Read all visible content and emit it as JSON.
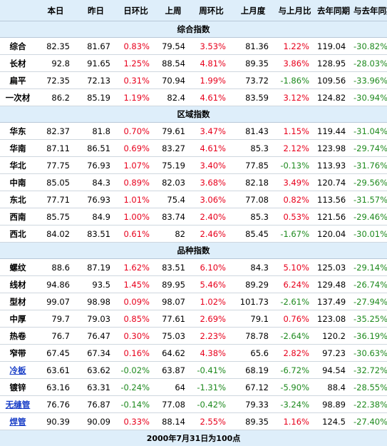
{
  "colors": {
    "up": "#e8001c",
    "down": "#1e8a1e",
    "link": "#1a3fc7",
    "header_bg": "#deeefa"
  },
  "headers": [
    "",
    "本日",
    "昨日",
    "日环比",
    "上周",
    "周环比",
    "上月度",
    "与上月比",
    "去年同期",
    "与去年同期"
  ],
  "sections": [
    {
      "title": "综合指数",
      "rows": [
        {
          "name": "综合",
          "link": false,
          "values": [
            "82.35",
            "81.67",
            "0.83%",
            "79.54",
            "3.53%",
            "81.36",
            "1.22%",
            "119.04",
            "-30.82%"
          ]
        },
        {
          "name": "长材",
          "link": false,
          "values": [
            "92.8",
            "91.65",
            "1.25%",
            "88.54",
            "4.81%",
            "89.35",
            "3.86%",
            "128.95",
            "-28.03%"
          ]
        },
        {
          "name": "扁平",
          "link": false,
          "values": [
            "72.35",
            "72.13",
            "0.31%",
            "70.94",
            "1.99%",
            "73.72",
            "-1.86%",
            "109.56",
            "-33.96%"
          ]
        },
        {
          "name": "一次材",
          "link": false,
          "values": [
            "86.2",
            "85.19",
            "1.19%",
            "82.4",
            "4.61%",
            "83.59",
            "3.12%",
            "124.82",
            "-30.94%"
          ]
        }
      ]
    },
    {
      "title": "区域指数",
      "rows": [
        {
          "name": "华东",
          "link": false,
          "values": [
            "82.37",
            "81.8",
            "0.70%",
            "79.61",
            "3.47%",
            "81.43",
            "1.15%",
            "119.44",
            "-31.04%"
          ]
        },
        {
          "name": "华南",
          "link": false,
          "values": [
            "87.11",
            "86.51",
            "0.69%",
            "83.27",
            "4.61%",
            "85.3",
            "2.12%",
            "123.98",
            "-29.74%"
          ]
        },
        {
          "name": "华北",
          "link": false,
          "values": [
            "77.75",
            "76.93",
            "1.07%",
            "75.19",
            "3.40%",
            "77.85",
            "-0.13%",
            "113.93",
            "-31.76%"
          ]
        },
        {
          "name": "中南",
          "link": false,
          "values": [
            "85.05",
            "84.3",
            "0.89%",
            "82.03",
            "3.68%",
            "82.18",
            "3.49%",
            "120.74",
            "-29.56%"
          ]
        },
        {
          "name": "东北",
          "link": false,
          "values": [
            "77.71",
            "76.93",
            "1.01%",
            "75.4",
            "3.06%",
            "77.08",
            "0.82%",
            "113.56",
            "-31.57%"
          ]
        },
        {
          "name": "西南",
          "link": false,
          "values": [
            "85.75",
            "84.9",
            "1.00%",
            "83.74",
            "2.40%",
            "85.3",
            "0.53%",
            "121.56",
            "-29.46%"
          ]
        },
        {
          "name": "西北",
          "link": false,
          "values": [
            "84.02",
            "83.51",
            "0.61%",
            "82",
            "2.46%",
            "85.45",
            "-1.67%",
            "120.04",
            "-30.01%"
          ]
        }
      ]
    },
    {
      "title": "品种指数",
      "rows": [
        {
          "name": "螺纹",
          "link": false,
          "values": [
            "88.6",
            "87.19",
            "1.62%",
            "83.51",
            "6.10%",
            "84.3",
            "5.10%",
            "125.03",
            "-29.14%"
          ]
        },
        {
          "name": "线材",
          "link": false,
          "values": [
            "94.86",
            "93.5",
            "1.45%",
            "89.95",
            "5.46%",
            "89.29",
            "6.24%",
            "129.48",
            "-26.74%"
          ]
        },
        {
          "name": "型材",
          "link": false,
          "values": [
            "99.07",
            "98.98",
            "0.09%",
            "98.07",
            "1.02%",
            "101.73",
            "-2.61%",
            "137.49",
            "-27.94%"
          ]
        },
        {
          "name": "中厚",
          "link": false,
          "values": [
            "79.7",
            "79.03",
            "0.85%",
            "77.61",
            "2.69%",
            "79.1",
            "0.76%",
            "123.08",
            "-35.25%"
          ]
        },
        {
          "name": "热卷",
          "link": false,
          "values": [
            "76.7",
            "76.47",
            "0.30%",
            "75.03",
            "2.23%",
            "78.78",
            "-2.64%",
            "120.2",
            "-36.19%"
          ]
        },
        {
          "name": "窄带",
          "link": false,
          "values": [
            "67.45",
            "67.34",
            "0.16%",
            "64.62",
            "4.38%",
            "65.6",
            "2.82%",
            "97.23",
            "-30.63%"
          ]
        },
        {
          "name": "冷板",
          "link": true,
          "values": [
            "63.61",
            "63.62",
            "-0.02%",
            "63.87",
            "-0.41%",
            "68.19",
            "-6.72%",
            "94.54",
            "-32.72%"
          ]
        },
        {
          "name": "镀锌",
          "link": false,
          "values": [
            "63.16",
            "63.31",
            "-0.24%",
            "64",
            "-1.31%",
            "67.12",
            "-5.90%",
            "88.4",
            "-28.55%"
          ]
        },
        {
          "name": "无缝管",
          "link": true,
          "values": [
            "76.76",
            "76.87",
            "-0.14%",
            "77.08",
            "-0.42%",
            "79.33",
            "-3.24%",
            "98.89",
            "-22.38%"
          ]
        },
        {
          "name": "焊管",
          "link": true,
          "values": [
            "90.39",
            "90.09",
            "0.33%",
            "88.14",
            "2.55%",
            "89.35",
            "1.16%",
            "124.5",
            "-27.40%"
          ]
        }
      ]
    }
  ],
  "footer": "2000年7月31日为100点"
}
